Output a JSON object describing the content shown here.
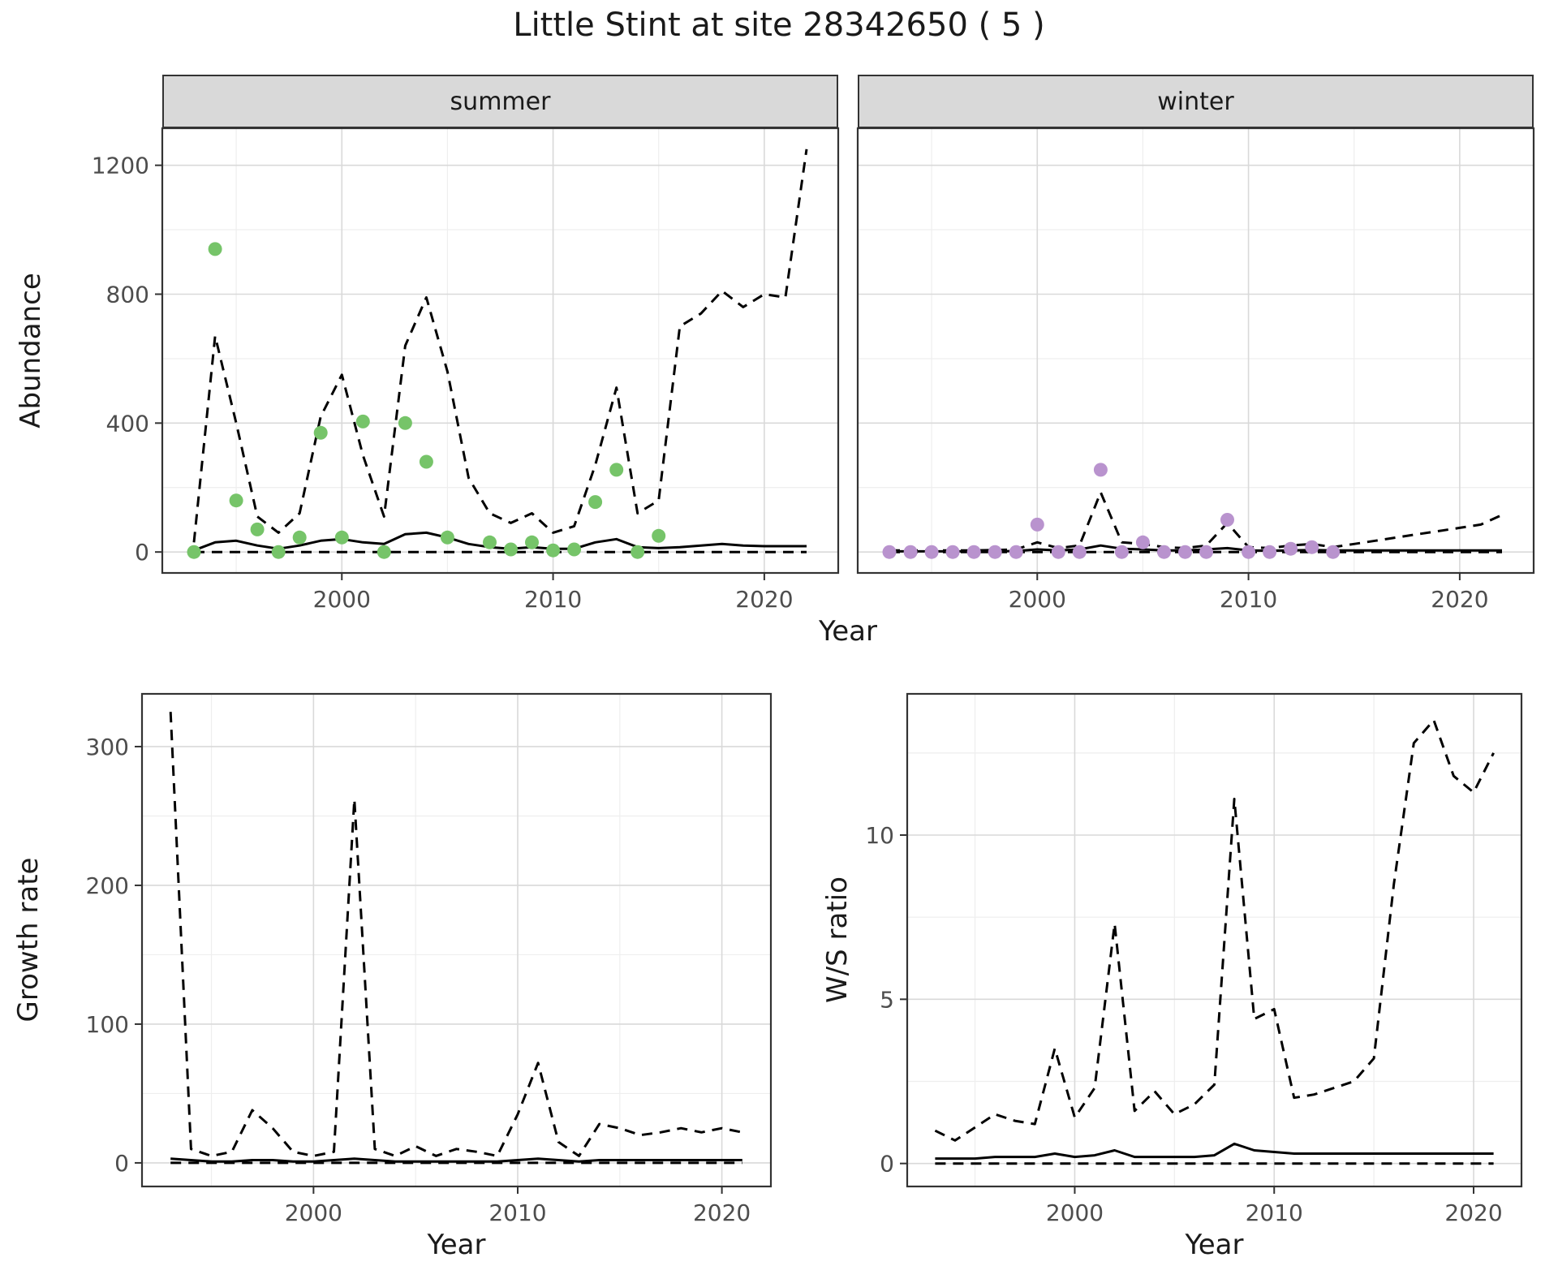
{
  "title": "Little Stint at site 28342650 ( 5 )",
  "facets": {
    "summer": "summer",
    "winter": "winter"
  },
  "axis_labels": {
    "abundance": "Abundance",
    "year": "Year",
    "growth_rate": "Growth rate",
    "ws_ratio": "W/S ratio"
  },
  "colors": {
    "summer_points": "#76c469",
    "winter_points": "#b993ce",
    "line": "#000000",
    "grid_major": "#d9d9d9",
    "grid_minor": "#eeeeee",
    "panel_border": "#333333",
    "strip_bg": "#d9d9d9",
    "tick_text": "#4d4d4d"
  },
  "chart_data": [
    {
      "id": "abundance_summer",
      "type": "line",
      "facet": "summer",
      "xlabel": "Year",
      "ylabel": "Abundance",
      "x": {
        "domain": [
          1991.5,
          2023.5
        ],
        "ticks": [
          2000,
          2010,
          2020
        ],
        "minor_ticks": [
          1995,
          2005,
          2015
        ]
      },
      "y": {
        "domain": [
          -65,
          1315
        ],
        "ticks": [
          0,
          400,
          800,
          1200
        ],
        "minor_ticks": [
          200,
          600,
          1000
        ]
      },
      "series": [
        {
          "name": "dashed-upper",
          "style": "dashed",
          "color": "#000000",
          "years": [
            1993,
            1994,
            1995,
            1996,
            1997,
            1998,
            1999,
            2000,
            2001,
            2002,
            2003,
            2004,
            2005,
            2006,
            2007,
            2008,
            2009,
            2010,
            2011,
            2012,
            2013,
            2014,
            2015,
            2016,
            2017,
            2018,
            2019,
            2020,
            2021,
            2022
          ],
          "values": [
            30,
            670,
            400,
            110,
            60,
            120,
            420,
            550,
            300,
            110,
            640,
            790,
            560,
            230,
            120,
            90,
            120,
            60,
            80,
            270,
            510,
            120,
            160,
            700,
            740,
            810,
            760,
            800,
            790,
            1250
          ]
        },
        {
          "name": "dashed-lower",
          "style": "dashed",
          "color": "#000000",
          "years": [
            1993,
            1994,
            1995,
            1996,
            1997,
            1998,
            1999,
            2000,
            2001,
            2002,
            2003,
            2004,
            2005,
            2006,
            2007,
            2008,
            2009,
            2010,
            2011,
            2012,
            2013,
            2014,
            2015,
            2016,
            2017,
            2018,
            2019,
            2020,
            2021,
            2022
          ],
          "values": [
            0,
            0,
            0,
            0,
            0,
            0,
            0,
            0,
            0,
            0,
            0,
            0,
            0,
            0,
            0,
            0,
            0,
            0,
            0,
            0,
            0,
            0,
            0,
            0,
            0,
            0,
            0,
            0,
            0,
            0
          ]
        },
        {
          "name": "solid-line",
          "style": "solid",
          "color": "#000000",
          "years": [
            1993,
            1994,
            1995,
            1996,
            1997,
            1998,
            1999,
            2000,
            2001,
            2002,
            2003,
            2004,
            2005,
            2006,
            2007,
            2008,
            2009,
            2010,
            2011,
            2012,
            2013,
            2014,
            2015,
            2016,
            2017,
            2018,
            2019,
            2020,
            2021,
            2022
          ],
          "values": [
            5,
            30,
            35,
            20,
            10,
            20,
            35,
            40,
            30,
            25,
            55,
            60,
            45,
            25,
            15,
            10,
            15,
            10,
            10,
            30,
            40,
            15,
            12,
            15,
            20,
            25,
            20,
            18,
            18,
            18
          ]
        },
        {
          "name": "points",
          "style": "points",
          "color": "#76c469",
          "years": [
            1993,
            1994,
            1995,
            1996,
            1997,
            1998,
            1999,
            2000,
            2001,
            2002,
            2003,
            2004,
            2005,
            2007,
            2008,
            2009,
            2010,
            2011,
            2012,
            2013,
            2014,
            2015
          ],
          "values": [
            0,
            940,
            160,
            70,
            0,
            45,
            370,
            45,
            405,
            0,
            400,
            280,
            45,
            30,
            8,
            30,
            5,
            8,
            155,
            255,
            0,
            50
          ]
        }
      ]
    },
    {
      "id": "abundance_winter",
      "type": "line",
      "facet": "winter",
      "xlabel": "Year",
      "ylabel": "Abundance",
      "x": {
        "domain": [
          1991.5,
          2023.5
        ],
        "ticks": [
          2000,
          2010,
          2020
        ],
        "minor_ticks": [
          1995,
          2005,
          2015
        ]
      },
      "y": {
        "domain": [
          -65,
          1315
        ],
        "ticks": [
          0,
          400,
          800,
          1200
        ],
        "minor_ticks": [
          200,
          600,
          1000
        ]
      },
      "series": [
        {
          "name": "dashed-upper",
          "style": "dashed",
          "color": "#000000",
          "years": [
            1993,
            1994,
            1995,
            1996,
            1997,
            1998,
            1999,
            2000,
            2001,
            2002,
            2003,
            2004,
            2005,
            2006,
            2007,
            2008,
            2009,
            2010,
            2011,
            2012,
            2013,
            2014,
            2015,
            2016,
            2017,
            2018,
            2019,
            2020,
            2021,
            2022
          ],
          "values": [
            5,
            5,
            5,
            5,
            5,
            6,
            8,
            30,
            12,
            20,
            185,
            30,
            25,
            15,
            12,
            20,
            90,
            15,
            12,
            20,
            25,
            15,
            25,
            35,
            45,
            55,
            65,
            75,
            85,
            115
          ]
        },
        {
          "name": "dashed-lower",
          "style": "dashed",
          "color": "#000000",
          "years": [
            1993,
            1994,
            1995,
            1996,
            1997,
            1998,
            1999,
            2000,
            2001,
            2002,
            2003,
            2004,
            2005,
            2006,
            2007,
            2008,
            2009,
            2010,
            2011,
            2012,
            2013,
            2014,
            2015,
            2016,
            2017,
            2018,
            2019,
            2020,
            2021,
            2022
          ],
          "values": [
            0,
            0,
            0,
            0,
            0,
            0,
            0,
            0,
            0,
            0,
            0,
            0,
            0,
            0,
            0,
            0,
            0,
            0,
            0,
            0,
            0,
            0,
            0,
            0,
            0,
            0,
            0,
            0,
            0,
            0
          ]
        },
        {
          "name": "solid-line",
          "style": "solid",
          "color": "#000000",
          "years": [
            1993,
            1994,
            1995,
            1996,
            1997,
            1998,
            1999,
            2000,
            2001,
            2002,
            2003,
            2004,
            2005,
            2006,
            2007,
            2008,
            2009,
            2010,
            2011,
            2012,
            2013,
            2014,
            2015,
            2016,
            2017,
            2018,
            2019,
            2020,
            2021,
            2022
          ],
          "values": [
            2,
            2,
            2,
            2,
            2,
            2,
            3,
            8,
            5,
            8,
            20,
            10,
            8,
            5,
            5,
            8,
            12,
            5,
            4,
            5,
            6,
            5,
            5,
            5,
            5,
            5,
            5,
            5,
            5,
            5
          ]
        },
        {
          "name": "points",
          "style": "points",
          "color": "#b993ce",
          "years": [
            1993,
            1994,
            1995,
            1996,
            1997,
            1998,
            1999,
            2000,
            2001,
            2002,
            2003,
            2004,
            2005,
            2006,
            2007,
            2008,
            2009,
            2010,
            2011,
            2012,
            2013,
            2014
          ],
          "values": [
            0,
            0,
            0,
            0,
            0,
            0,
            0,
            85,
            0,
            0,
            255,
            0,
            30,
            0,
            0,
            0,
            100,
            0,
            0,
            10,
            15,
            0
          ]
        }
      ]
    },
    {
      "id": "growth_rate",
      "type": "line",
      "facet": null,
      "xlabel": "Year",
      "ylabel": "Growth rate",
      "x": {
        "domain": [
          1991.6,
          2022.4
        ],
        "ticks": [
          2000,
          2010,
          2020
        ],
        "minor_ticks": [
          1995,
          2005,
          2015
        ]
      },
      "y": {
        "domain": [
          -17,
          338
        ],
        "ticks": [
          0,
          100,
          200,
          300
        ],
        "minor_ticks": [
          50,
          150,
          250
        ]
      },
      "series": [
        {
          "name": "dashed-upper",
          "style": "dashed",
          "color": "#000000",
          "years": [
            1993,
            1994,
            1995,
            1996,
            1997,
            1998,
            1999,
            2000,
            2001,
            2002,
            2003,
            2004,
            2005,
            2006,
            2007,
            2008,
            2009,
            2010,
            2011,
            2012,
            2013,
            2014,
            2015,
            2016,
            2017,
            2018,
            2019,
            2020,
            2021
          ],
          "values": [
            325,
            10,
            5,
            8,
            38,
            25,
            8,
            5,
            8,
            262,
            10,
            5,
            12,
            5,
            10,
            8,
            5,
            35,
            72,
            15,
            5,
            28,
            25,
            20,
            22,
            25,
            22,
            25,
            22
          ]
        },
        {
          "name": "dashed-lower",
          "style": "dashed",
          "color": "#000000",
          "years": [
            1993,
            1994,
            1995,
            1996,
            1997,
            1998,
            1999,
            2000,
            2001,
            2002,
            2003,
            2004,
            2005,
            2006,
            2007,
            2008,
            2009,
            2010,
            2011,
            2012,
            2013,
            2014,
            2015,
            2016,
            2017,
            2018,
            2019,
            2020,
            2021
          ],
          "values": [
            0,
            0,
            0,
            0,
            0,
            0,
            0,
            0,
            0,
            0,
            0,
            0,
            0,
            0,
            0,
            0,
            0,
            0,
            0,
            0,
            0,
            0,
            0,
            0,
            0,
            0,
            0,
            0,
            0
          ]
        },
        {
          "name": "solid-line",
          "style": "solid",
          "color": "#000000",
          "years": [
            1993,
            1994,
            1995,
            1996,
            1997,
            1998,
            1999,
            2000,
            2001,
            2002,
            2003,
            2004,
            2005,
            2006,
            2007,
            2008,
            2009,
            2010,
            2011,
            2012,
            2013,
            2014,
            2015,
            2016,
            2017,
            2018,
            2019,
            2020,
            2021
          ],
          "values": [
            3,
            2,
            1,
            1,
            2,
            2,
            1,
            1,
            2,
            3,
            2,
            1,
            1,
            1,
            1,
            1,
            1,
            2,
            3,
            2,
            1,
            2,
            2,
            2,
            2,
            2,
            2,
            2,
            2
          ]
        }
      ]
    },
    {
      "id": "ws_ratio",
      "type": "line",
      "facet": null,
      "xlabel": "Year",
      "ylabel": "W/S ratio",
      "x": {
        "domain": [
          1991.6,
          2022.4
        ],
        "ticks": [
          2000,
          2010,
          2020
        ],
        "minor_ticks": [
          1995,
          2005,
          2015
        ]
      },
      "y": {
        "domain": [
          -0.7,
          14.3
        ],
        "ticks": [
          0,
          5,
          10
        ],
        "minor_ticks": [
          2.5,
          7.5,
          12.5
        ]
      },
      "series": [
        {
          "name": "dashed-upper",
          "style": "dashed",
          "color": "#000000",
          "years": [
            1993,
            1994,
            1995,
            1996,
            1997,
            1998,
            1999,
            2000,
            2001,
            2002,
            2003,
            2004,
            2005,
            2006,
            2007,
            2008,
            2009,
            2010,
            2011,
            2012,
            2013,
            2014,
            2015,
            2016,
            2017,
            2018,
            2019,
            2020,
            2021
          ],
          "values": [
            1.0,
            0.7,
            1.1,
            1.5,
            1.3,
            1.2,
            3.5,
            1.4,
            2.3,
            7.3,
            1.6,
            2.2,
            1.5,
            1.8,
            2.4,
            11.1,
            4.4,
            4.7,
            2.0,
            2.1,
            2.3,
            2.5,
            3.2,
            8.5,
            12.8,
            13.5,
            11.8,
            11.3,
            12.5
          ]
        },
        {
          "name": "dashed-lower",
          "style": "dashed",
          "color": "#000000",
          "years": [
            1993,
            1994,
            1995,
            1996,
            1997,
            1998,
            1999,
            2000,
            2001,
            2002,
            2003,
            2004,
            2005,
            2006,
            2007,
            2008,
            2009,
            2010,
            2011,
            2012,
            2013,
            2014,
            2015,
            2016,
            2017,
            2018,
            2019,
            2020,
            2021
          ],
          "values": [
            0,
            0,
            0,
            0,
            0,
            0,
            0,
            0,
            0,
            0,
            0,
            0,
            0,
            0,
            0,
            0,
            0,
            0,
            0,
            0,
            0,
            0,
            0,
            0,
            0,
            0,
            0,
            0,
            0
          ]
        },
        {
          "name": "solid-line",
          "style": "solid",
          "color": "#000000",
          "years": [
            1993,
            1994,
            1995,
            1996,
            1997,
            1998,
            1999,
            2000,
            2001,
            2002,
            2003,
            2004,
            2005,
            2006,
            2007,
            2008,
            2009,
            2010,
            2011,
            2012,
            2013,
            2014,
            2015,
            2016,
            2017,
            2018,
            2019,
            2020,
            2021
          ],
          "values": [
            0.15,
            0.15,
            0.15,
            0.2,
            0.2,
            0.2,
            0.3,
            0.2,
            0.25,
            0.4,
            0.2,
            0.2,
            0.2,
            0.2,
            0.25,
            0.6,
            0.4,
            0.35,
            0.3,
            0.3,
            0.3,
            0.3,
            0.3,
            0.3,
            0.3,
            0.3,
            0.3,
            0.3,
            0.3
          ]
        }
      ]
    }
  ]
}
